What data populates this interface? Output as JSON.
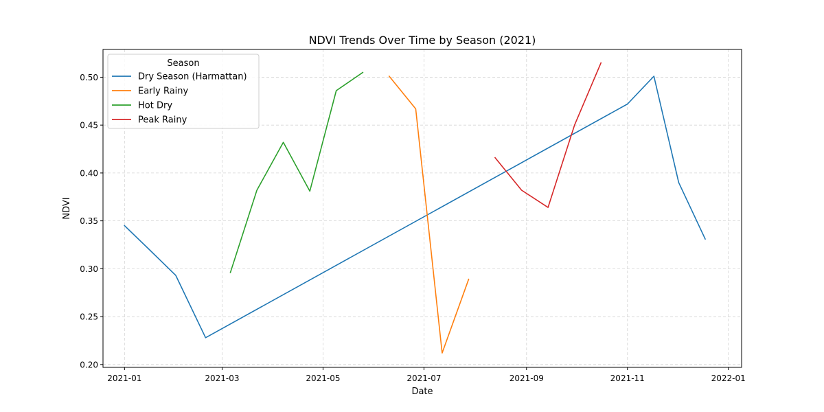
{
  "chart_data": {
    "type": "line",
    "title": "NDVI Trends Over Time by Season (2021)",
    "xlabel": "Date",
    "ylabel": "NDVI",
    "xlim": [
      "2020-12-19",
      "2022-01-09"
    ],
    "ylim": [
      0.197,
      0.529
    ],
    "grid": true,
    "legend": {
      "title": "Season",
      "placement": "top-left"
    },
    "x_ticks": [
      "2021-01",
      "2021-03",
      "2021-05",
      "2021-07",
      "2021-09",
      "2021-11",
      "2022-01"
    ],
    "y_ticks": [
      "0.20",
      "0.25",
      "0.30",
      "0.35",
      "0.40",
      "0.45",
      "0.50"
    ],
    "series": [
      {
        "name": "Dry Season (Harmattan)",
        "color": "#1f77b4",
        "points": [
          [
            "2021-01-01",
            0.345
          ],
          [
            "2021-01-16",
            0.32
          ],
          [
            "2021-02-01",
            0.293
          ],
          [
            "2021-02-19",
            0.228
          ],
          [
            "2021-11-01",
            0.472
          ],
          [
            "2021-11-17",
            0.501
          ],
          [
            "2021-12-02",
            0.39
          ],
          [
            "2021-12-18",
            0.331
          ]
        ]
      },
      {
        "name": "Early Rainy",
        "color": "#ff7f0e",
        "points": [
          [
            "2021-06-10",
            0.501
          ],
          [
            "2021-06-26",
            0.467
          ],
          [
            "2021-07-12",
            0.212
          ],
          [
            "2021-07-28",
            0.289
          ]
        ]
      },
      {
        "name": "Hot Dry",
        "color": "#2ca02c",
        "points": [
          [
            "2021-03-06",
            0.296
          ],
          [
            "2021-03-22",
            0.382
          ],
          [
            "2021-04-07",
            0.432
          ],
          [
            "2021-04-23",
            0.381
          ],
          [
            "2021-05-09",
            0.486
          ],
          [
            "2021-05-25",
            0.505
          ]
        ]
      },
      {
        "name": "Peak Rainy",
        "color": "#d62728",
        "points": [
          [
            "2021-08-13",
            0.416
          ],
          [
            "2021-08-29",
            0.382
          ],
          [
            "2021-09-14",
            0.364
          ],
          [
            "2021-09-30",
            0.45
          ],
          [
            "2021-10-16",
            0.515
          ]
        ]
      }
    ]
  }
}
